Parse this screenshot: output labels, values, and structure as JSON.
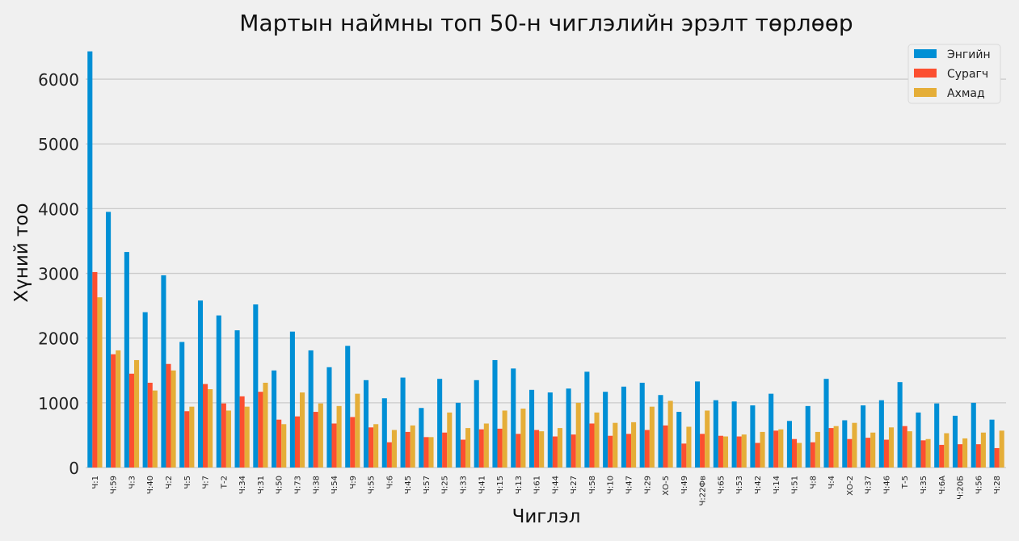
{
  "chart_data": {
    "type": "bar",
    "title": "Мартын наймны топ 50-н чиглэлийн эрэлт төрлөөр",
    "xlabel": "Чиглэл",
    "ylabel": "Хүний тоо",
    "ylim": [
      0,
      6500
    ],
    "yticks": [
      0,
      1000,
      2000,
      3000,
      4000,
      5000,
      6000
    ],
    "grid": true,
    "legend_position": "top-right",
    "categories": [
      "Ч:1",
      "Ч:59",
      "Ч:3",
      "Ч:40",
      "Ч:2",
      "Ч:5",
      "Ч:7",
      "Т-2",
      "Ч:34",
      "Ч:31",
      "Ч:50",
      "Ч:73",
      "Ч:38",
      "Ч:54",
      "Ч:9",
      "Ч:55",
      "Ч:6",
      "Ч:45",
      "Ч:57",
      "Ч:25",
      "Ч:33",
      "Ч:41",
      "Ч:15",
      "Ч:13",
      "Ч:61",
      "Ч:44",
      "Ч:27",
      "Ч:58",
      "Ч:10",
      "Ч:47",
      "Ч:29",
      "ХО-5",
      "Ч:49",
      "Ч:22Фв",
      "Ч:65",
      "Ч:53",
      "Ч:42",
      "Ч:14",
      "Ч:51",
      "Ч:8",
      "Ч:4",
      "ХО-2",
      "Ч:37",
      "Ч:46",
      "Т-5",
      "Ч:35",
      "Ч:6А",
      "Ч:20Б",
      "Ч:56",
      "Ч:28"
    ],
    "series": [
      {
        "name": "Энгийн",
        "color": "#008fd5",
        "values": [
          6430,
          3950,
          3330,
          2400,
          2970,
          1940,
          2580,
          2350,
          2120,
          2520,
          1500,
          2100,
          1810,
          1550,
          1880,
          1350,
          1070,
          1390,
          920,
          1370,
          1000,
          1350,
          1660,
          1530,
          1200,
          1160,
          1220,
          1480,
          1170,
          1250,
          1310,
          1120,
          860,
          1330,
          1040,
          1020,
          960,
          1140,
          720,
          950,
          1370,
          730,
          960,
          1040,
          1320,
          850,
          990,
          800,
          1000,
          740
        ]
      },
      {
        "name": "Сурагч",
        "color": "#fc4f30",
        "values": [
          3020,
          1750,
          1450,
          1310,
          1600,
          870,
          1290,
          990,
          1100,
          1170,
          740,
          790,
          860,
          680,
          780,
          620,
          390,
          550,
          470,
          540,
          430,
          590,
          600,
          520,
          580,
          480,
          510,
          680,
          490,
          520,
          580,
          650,
          370,
          520,
          490,
          480,
          380,
          570,
          440,
          390,
          610,
          440,
          460,
          430,
          640,
          420,
          350,
          360,
          360,
          300
        ]
      },
      {
        "name": "Ахмад",
        "color": "#e5ae38",
        "values": [
          2630,
          1810,
          1660,
          1190,
          1500,
          940,
          1210,
          880,
          940,
          1310,
          670,
          1160,
          990,
          950,
          1140,
          670,
          580,
          650,
          470,
          850,
          610,
          680,
          880,
          910,
          560,
          610,
          1000,
          850,
          690,
          700,
          940,
          1030,
          630,
          880,
          480,
          510,
          550,
          590,
          380,
          550,
          640,
          690,
          540,
          620,
          560,
          440,
          530,
          450,
          540,
          570
        ]
      }
    ]
  }
}
